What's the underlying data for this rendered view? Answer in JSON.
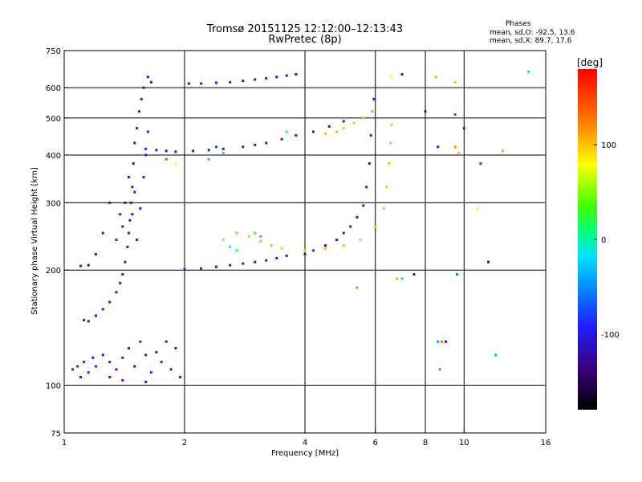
{
  "header": {
    "title_line1": "Tromsø 20151125 12:12:00–12:13:43",
    "title_line2": "RwPretec (8p)",
    "phases_title": "Phases",
    "phases_o": "mean, sd,O: -92.5, 13.6",
    "phases_x": "mean, sd,X:  89.7, 17.6"
  },
  "colorbar": {
    "label": "[deg]",
    "ticks": [
      {
        "value": 100,
        "label": "100"
      },
      {
        "value": 0,
        "label": "0"
      },
      {
        "value": -100,
        "label": "-100"
      }
    ],
    "range": [
      -180,
      180
    ]
  },
  "chart_data": {
    "type": "scatter",
    "title": "Tromsø 20151125 12:12:00–12:13:43",
    "subtitle": "RwPretec (8p)",
    "xlabel": "Frequency [MHz]",
    "ylabel": "Stationary phase Virtual Height [km]",
    "x_scale": "log",
    "y_scale": "log",
    "xlim": [
      1,
      16
    ],
    "ylim": [
      75,
      750
    ],
    "x_ticks": [
      {
        "value": 1,
        "label": "1"
      },
      {
        "value": 2,
        "label": "2"
      },
      {
        "value": 4,
        "label": "4"
      },
      {
        "value": 6,
        "label": "6"
      },
      {
        "value": 8,
        "label": "8"
      },
      {
        "value": 10,
        "label": "10"
      },
      {
        "value": 16,
        "label": "16"
      }
    ],
    "y_ticks": [
      {
        "value": 75,
        "label": "75"
      },
      {
        "value": 100,
        "label": "100"
      },
      {
        "value": 200,
        "label": "200"
      },
      {
        "value": 300,
        "label": "300"
      },
      {
        "value": 400,
        "label": "400"
      },
      {
        "value": 500,
        "label": "500"
      },
      {
        "value": 600,
        "label": "600"
      },
      {
        "value": 750,
        "label": "750"
      }
    ],
    "grid_x": [
      2,
      4,
      6,
      8,
      10
    ],
    "grid_y": [
      100,
      200,
      300,
      400,
      500,
      600
    ],
    "color_scale": "phase [deg]",
    "series": [
      {
        "points": [
          [
            1.05,
            110,
            -95
          ],
          [
            1.08,
            112,
            -85
          ],
          [
            1.1,
            105,
            -100
          ],
          [
            1.12,
            115,
            -90
          ],
          [
            1.15,
            108,
            -80
          ],
          [
            1.18,
            118,
            -100
          ],
          [
            1.2,
            112,
            -95
          ],
          [
            1.25,
            120,
            -100
          ],
          [
            1.3,
            115,
            -90
          ],
          [
            1.35,
            110,
            -105
          ],
          [
            1.4,
            118,
            -95
          ],
          [
            1.45,
            125,
            -100
          ],
          [
            1.5,
            112,
            -110
          ],
          [
            1.55,
            130,
            -95
          ],
          [
            1.6,
            120,
            -100
          ],
          [
            1.65,
            108,
            -85
          ],
          [
            1.7,
            122,
            -100
          ],
          [
            1.75,
            115,
            -95
          ],
          [
            1.8,
            130,
            -100
          ],
          [
            1.85,
            110,
            -100
          ],
          [
            1.9,
            125,
            -95
          ],
          [
            1.95,
            105,
            -100
          ],
          [
            1.3,
            105,
            -100
          ],
          [
            1.6,
            102,
            -100
          ],
          [
            1.4,
            103,
            -95
          ],
          [
            1.12,
            148,
            -100
          ],
          [
            1.15,
            147,
            -100
          ],
          [
            1.2,
            152,
            -100
          ],
          [
            1.25,
            158,
            -100
          ],
          [
            1.3,
            165,
            -100
          ],
          [
            1.35,
            175,
            -100
          ],
          [
            1.38,
            185,
            -100
          ],
          [
            1.4,
            195,
            -100
          ],
          [
            1.42,
            210,
            -100
          ],
          [
            1.44,
            230,
            -100
          ],
          [
            1.45,
            250,
            -100
          ],
          [
            1.46,
            270,
            -100
          ],
          [
            1.47,
            300,
            -100
          ],
          [
            1.48,
            330,
            -100
          ],
          [
            1.49,
            380,
            -100
          ],
          [
            1.5,
            430,
            -100
          ],
          [
            1.52,
            470,
            -100
          ],
          [
            1.54,
            520,
            -100
          ],
          [
            1.56,
            560,
            -100
          ],
          [
            1.58,
            600,
            -100
          ],
          [
            1.62,
            640,
            -100
          ],
          [
            1.65,
            620,
            -100
          ],
          [
            1.4,
            260,
            -100
          ],
          [
            1.42,
            300,
            -100
          ],
          [
            1.45,
            350,
            -100
          ],
          [
            1.48,
            280,
            -100
          ],
          [
            1.5,
            320,
            -100
          ],
          [
            1.52,
            240,
            -100
          ],
          [
            1.55,
            290,
            -100
          ],
          [
            1.58,
            350,
            -100
          ],
          [
            1.6,
            400,
            -100
          ],
          [
            1.62,
            460,
            -100
          ],
          [
            1.35,
            240,
            -100
          ],
          [
            1.38,
            280,
            -100
          ],
          [
            1.3,
            300,
            -100
          ],
          [
            1.25,
            250,
            -100
          ],
          [
            1.2,
            220,
            -100
          ],
          [
            1.15,
            206,
            -100
          ],
          [
            1.1,
            205,
            -100
          ],
          [
            1.6,
            415,
            -100
          ],
          [
            1.7,
            412,
            -100
          ],
          [
            1.8,
            410,
            -100
          ],
          [
            1.9,
            408,
            -100
          ],
          [
            2.1,
            410,
            -100
          ],
          [
            2.3,
            412,
            -100
          ],
          [
            2.5,
            415,
            -100
          ],
          [
            2.8,
            420,
            -95
          ],
          [
            3.0,
            425,
            -100
          ],
          [
            3.2,
            430,
            -100
          ],
          [
            3.5,
            440,
            -100
          ],
          [
            3.8,
            450,
            -100
          ],
          [
            4.2,
            460,
            -100
          ],
          [
            4.6,
            475,
            -100
          ],
          [
            5.0,
            490,
            -100
          ],
          [
            2.05,
            615,
            -100
          ],
          [
            2.2,
            615,
            -100
          ],
          [
            2.4,
            618,
            -100
          ],
          [
            2.6,
            620,
            -95
          ],
          [
            2.8,
            625,
            -100
          ],
          [
            3.0,
            630,
            -100
          ],
          [
            3.2,
            635,
            -100
          ],
          [
            3.4,
            640,
            -110
          ],
          [
            3.6,
            645,
            -100
          ],
          [
            3.8,
            650,
            -100
          ],
          [
            2.0,
            201,
            -100
          ],
          [
            2.2,
            202,
            -100
          ],
          [
            2.4,
            204,
            -100
          ],
          [
            2.6,
            206,
            -105
          ],
          [
            2.8,
            208,
            -100
          ],
          [
            3.0,
            210,
            -110
          ],
          [
            3.2,
            212,
            -100
          ],
          [
            3.4,
            215,
            -105
          ],
          [
            3.6,
            218,
            -100
          ],
          [
            4.0,
            220,
            -100
          ],
          [
            4.2,
            225,
            -100
          ],
          [
            4.5,
            232,
            -100
          ],
          [
            4.8,
            240,
            -100
          ],
          [
            5.0,
            250,
            -100
          ],
          [
            5.2,
            260,
            -100
          ],
          [
            5.4,
            275,
            -100
          ],
          [
            5.6,
            295,
            -100
          ],
          [
            5.7,
            330,
            -100
          ],
          [
            5.8,
            380,
            -100
          ],
          [
            5.85,
            450,
            -100
          ],
          [
            5.9,
            520,
            -100
          ],
          [
            5.95,
            560,
            -100
          ],
          [
            2.5,
            240,
            100
          ],
          [
            2.7,
            250,
            110
          ],
          [
            2.9,
            245,
            100
          ],
          [
            3.1,
            238,
            105
          ],
          [
            3.3,
            232,
            100
          ],
          [
            3.5,
            228,
            100
          ],
          [
            4.0,
            225,
            100
          ],
          [
            4.5,
            228,
            105
          ],
          [
            5.0,
            232,
            100
          ],
          [
            5.5,
            240,
            100
          ],
          [
            6.0,
            260,
            100
          ],
          [
            6.3,
            290,
            100
          ],
          [
            6.4,
            330,
            100
          ],
          [
            6.5,
            380,
            100
          ],
          [
            6.55,
            430,
            100
          ],
          [
            6.6,
            480,
            100
          ],
          [
            4.5,
            455,
            100
          ],
          [
            4.8,
            460,
            105
          ],
          [
            5.0,
            470,
            100
          ],
          [
            5.3,
            485,
            100
          ],
          [
            5.6,
            500,
            100
          ],
          [
            5.9,
            520,
            100
          ],
          [
            6.6,
            640,
            80
          ],
          [
            7.0,
            650,
            -100
          ],
          [
            8.5,
            640,
            110
          ],
          [
            9.5,
            620,
            100
          ],
          [
            14.5,
            660,
            -20
          ],
          [
            9.5,
            510,
            -70
          ],
          [
            10.0,
            470,
            -100
          ],
          [
            8.0,
            520,
            -100
          ],
          [
            8.6,
            420,
            -100
          ],
          [
            9.5,
            420,
            120
          ],
          [
            9.7,
            405,
            100
          ],
          [
            11.0,
            380,
            -80
          ],
          [
            12.5,
            410,
            110
          ],
          [
            10.8,
            290,
            80
          ],
          [
            6.8,
            190,
            110
          ],
          [
            5.4,
            180,
            120
          ],
          [
            7.0,
            190,
            -20
          ],
          [
            7.5,
            195,
            -100
          ],
          [
            9.6,
            195,
            -60
          ],
          [
            11.5,
            210,
            -130
          ],
          [
            8.6,
            130,
            -40
          ],
          [
            8.8,
            130,
            130
          ],
          [
            9.0,
            130,
            -100
          ],
          [
            8.7,
            110,
            -40
          ],
          [
            12.0,
            120,
            -40
          ],
          [
            3.0,
            250,
            30
          ],
          [
            3.1,
            245,
            -30
          ],
          [
            2.6,
            230,
            -20
          ],
          [
            2.7,
            225,
            20
          ],
          [
            2.3,
            390,
            -30
          ],
          [
            2.5,
            405,
            -10
          ],
          [
            2.4,
            420,
            -80
          ],
          [
            3.6,
            460,
            20
          ],
          [
            1.9,
            380,
            80
          ],
          [
            1.8,
            390,
            150
          ]
        ]
      }
    ]
  }
}
